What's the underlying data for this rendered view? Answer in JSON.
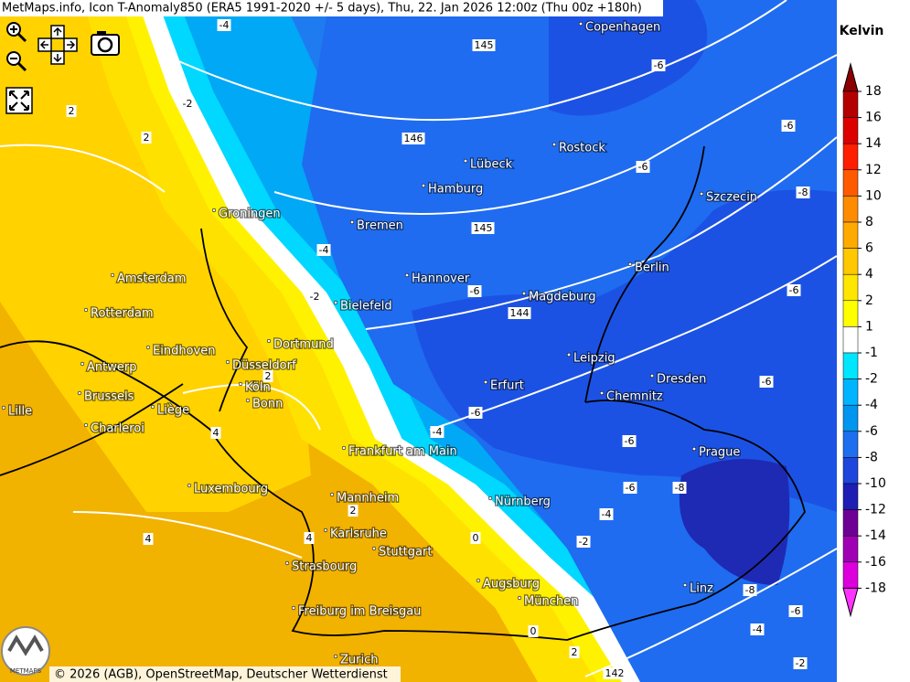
{
  "header": {
    "title": "MetMaps.info, Icon T-Anomaly850 (ERA5 1991-2020 +/- 5 days), Thu, 22. Jan 2026 12:00z (Thu 00z +180h)"
  },
  "legend": {
    "title": "Kelvin",
    "ticks": [
      18,
      16,
      14,
      12,
      10,
      8,
      6,
      4,
      2,
      1,
      -1,
      -2,
      -4,
      -6,
      -8,
      -10,
      -12,
      -14,
      -16,
      -18
    ],
    "colors": [
      "#8c0000",
      "#b40000",
      "#dc0000",
      "#ff1e00",
      "#ff5a00",
      "#ff8c00",
      "#ffaa00",
      "#ffc800",
      "#ffe600",
      "#ffff00",
      "#ffffff",
      "#00e6ff",
      "#00b4ff",
      "#0096f0",
      "#1e6ef0",
      "#1e46dc",
      "#1e1eb4",
      "#6e0096",
      "#a000b4",
      "#dc00dc",
      "#ff32ff"
    ]
  },
  "cities": [
    "Copenhagen",
    "Rostock",
    "Lübeck",
    "Hamburg",
    "Szczecin",
    "Groningen",
    "Bremen",
    "Berlin",
    "Amsterdam",
    "Hannover",
    "Magdeburg",
    "Bielefeld",
    "Rotterdam",
    "Dortmund",
    "Eindhoven",
    "Leipzig",
    "Antwerp",
    "Düsseldorf",
    "Dresden",
    "Erfurt",
    "Köln",
    "Brussels",
    "Chemnitz",
    "Bonn",
    "Liège",
    "Lille",
    "Charleroi",
    "Prague",
    "Frankfurt am Main",
    "Luxembourg",
    "Mannheim",
    "Nürnberg",
    "Karlsruhe",
    "Stuttgart",
    "Strasbourg",
    "Augsburg",
    "Linz",
    "München",
    "Freiburg im Breisgau",
    "Zurich"
  ],
  "contour_labels": [
    "-4",
    "-2",
    "2",
    "2",
    "146",
    "145",
    "-6",
    "-6",
    "-6",
    "-8",
    "145",
    "-4",
    "-2",
    "-6",
    "144",
    "-6",
    "-6",
    "-4",
    "-6",
    "2",
    "4",
    "-6",
    "-8",
    "-6",
    "-4",
    "-2",
    "0",
    "2",
    "4",
    "4",
    "-8",
    "-6",
    "-4",
    "0",
    "2",
    "142",
    "-2"
  ],
  "attribution": "© 2026 (AGB), OpenStreetMap, Deutscher Wetterdienst",
  "logo": "METMAPS"
}
